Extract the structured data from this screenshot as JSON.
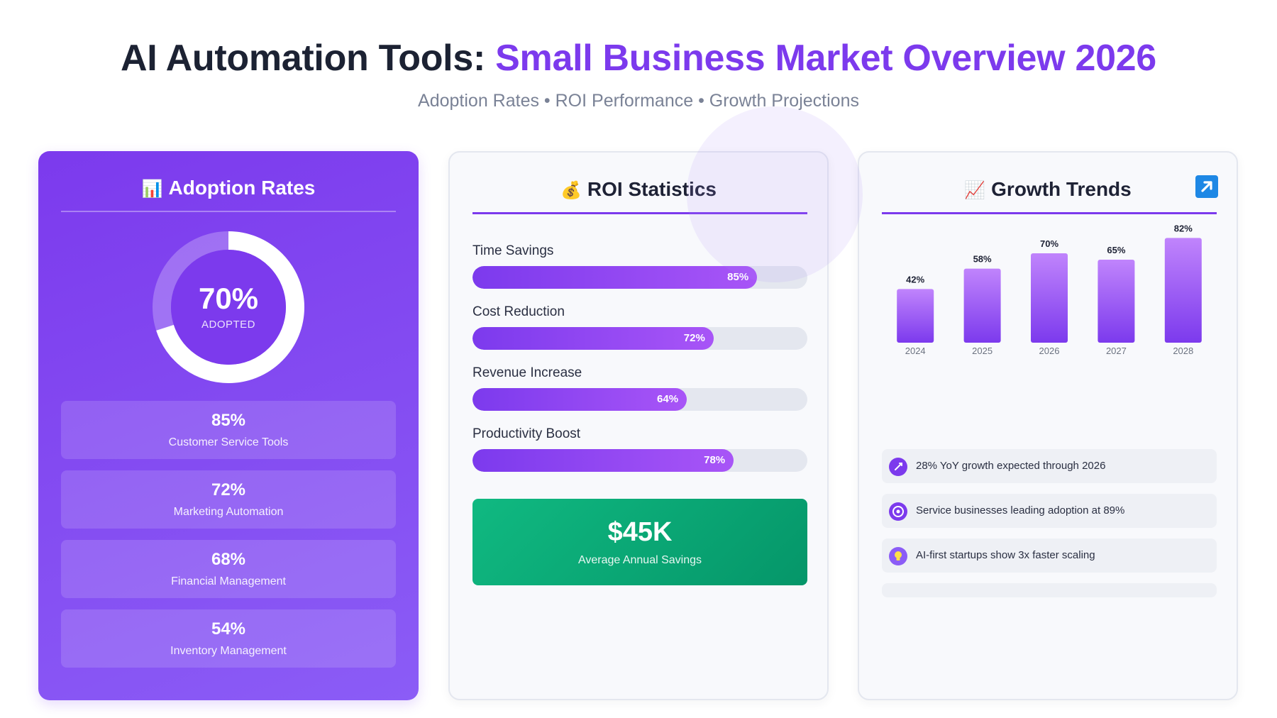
{
  "header": {
    "title_main": "AI Automation Tools: ",
    "title_accent": "Small Business Market Overview 2026",
    "subtitle": "Adoption Rates • ROI Performance • Growth Projections"
  },
  "colors": {
    "accent": "#7c3aed",
    "accent_light": "#a855f7",
    "success": "#10b981"
  },
  "adoption": {
    "title": "Adoption Rates",
    "title_icon": "bar-chart-icon",
    "overall_value": "70%",
    "overall_fraction": 0.7,
    "overall_label": "ADOPTED",
    "stats": [
      {
        "value": "85%",
        "label": "Customer Service Tools"
      },
      {
        "value": "72%",
        "label": "Marketing Automation"
      },
      {
        "value": "68%",
        "label": "Financial Management"
      },
      {
        "value": "54%",
        "label": "Inventory Management"
      }
    ]
  },
  "roi": {
    "title": "ROI Statistics",
    "title_icon": "money-bag-icon",
    "bars": [
      {
        "label": "Time Savings",
        "value": 85,
        "display": "85%"
      },
      {
        "label": "Cost Reduction",
        "value": 72,
        "display": "72%"
      },
      {
        "label": "Revenue Increase",
        "value": 64,
        "display": "64%"
      },
      {
        "label": "Productivity Boost",
        "value": 78,
        "display": "78%"
      }
    ],
    "savings_value": "$45K",
    "savings_label": "Average Annual Savings"
  },
  "growth": {
    "title": "Growth Trends",
    "title_icon": "trending-up-icon",
    "corner_icon": "arrow-up-right-icon",
    "insights": [
      {
        "icon": "rocket-icon",
        "text": "28% YoY growth expected through 2026"
      },
      {
        "icon": "target-icon",
        "text": "Service businesses leading adoption at 89%"
      },
      {
        "icon": "lightbulb-icon",
        "text": "AI-first startups show 3x faster scaling"
      }
    ]
  },
  "chart_data": {
    "type": "bar",
    "title": "Growth Trends",
    "categories": [
      "2024",
      "2025",
      "2026",
      "2027",
      "2028"
    ],
    "values": [
      42,
      58,
      70,
      65,
      82
    ],
    "data_labels": [
      "42%",
      "58%",
      "70%",
      "65%",
      "82%"
    ],
    "ylim": [
      0,
      100
    ],
    "grid": false
  }
}
